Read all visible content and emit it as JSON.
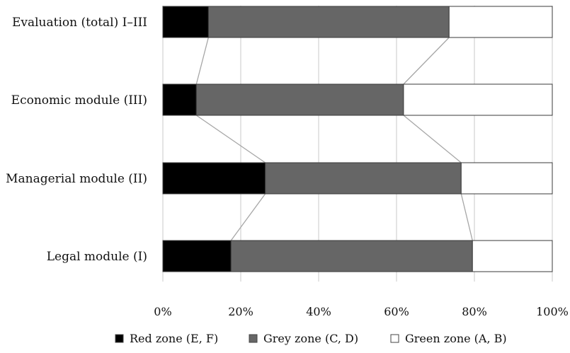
{
  "chart_data": {
    "type": "bar",
    "orientation": "horizontal",
    "stacked": "percent",
    "categories": [
      "Evaluation (total) I–III",
      "Economic module (III)",
      "Managerial module (II)",
      "Legal module (I)"
    ],
    "series": [
      {
        "name": "Red zone (E, F)",
        "color": "#000000",
        "values": [
          11.7,
          8.6,
          26.3,
          17.5
        ]
      },
      {
        "name": "Grey zone (C, D)",
        "color": "#666666",
        "values": [
          61.8,
          53.2,
          50.3,
          62.0
        ]
      },
      {
        "name": "Green zone (A, B)",
        "color": "#ffffff",
        "values": [
          26.5,
          38.2,
          23.4,
          20.5
        ]
      }
    ],
    "x_ticks": [
      "0%",
      "20%",
      "40%",
      "60%",
      "80%",
      "100%"
    ],
    "xlim": [
      0,
      100
    ],
    "grid": "vertical",
    "series_lines": true,
    "legend": "bottom"
  }
}
